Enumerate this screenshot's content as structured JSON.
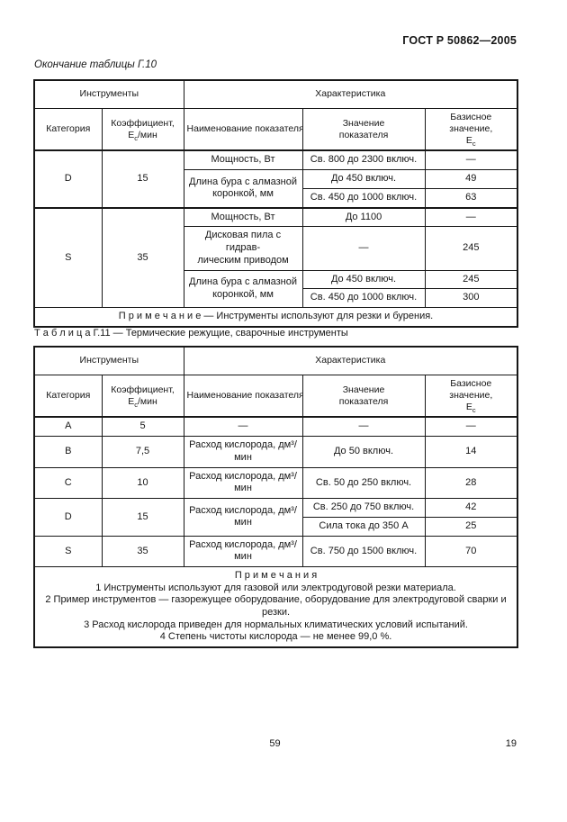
{
  "page": {
    "doc_number": "ГОСТ Р 50862—2005",
    "continuation_caption": "Окончание таблицы Г.10",
    "table2_caption": "Т а б л и ц а  Г.11 — Термические режущие, сварочные инструменты",
    "footer": {
      "page_center": "59",
      "page_right": "19"
    }
  },
  "header": {
    "instruments": "Инструменты",
    "characteristic": "Характеристика",
    "category": "Категория",
    "coef_line1": "Коэффициент,",
    "e_symbol": "Е",
    "e_sub": "с",
    "coef_unit": "/мин",
    "name": "Наименование показателя",
    "value_line1": "Значение",
    "value_line2": "показателя",
    "base_line1": "Базисное значение,"
  },
  "tables": [
    {
      "name": "Г.10",
      "rows": [
        {
          "cells": [
            {
              "t": "D",
              "r": 3
            },
            {
              "t": "15",
              "r": 3
            },
            {
              "t": "Мощность, Вт"
            },
            {
              "t": "Св. 800 до 2300 включ."
            },
            {
              "t": "—"
            }
          ]
        },
        {
          "cells": [
            {
              "t": "Длина бура с алмазной коронкой, мм",
              "r": 2
            },
            {
              "t": "До 450 включ."
            },
            {
              "t": "49"
            }
          ]
        },
        {
          "cells": [
            {
              "t": "Св. 450 до 1000 включ."
            },
            {
              "t": "63"
            }
          ]
        },
        {
          "cls": "group-sep",
          "cells": [
            {
              "t": "S",
              "r": 4
            },
            {
              "t": "35",
              "r": 4
            },
            {
              "t": "Мощность, Вт"
            },
            {
              "t": "До 1100"
            },
            {
              "t": "—"
            }
          ]
        },
        {
          "cells": [
            {
              "lines": [
                "Дисковая пила с гидрав-",
                "лическим приводом"
              ]
            },
            {
              "t": "—"
            },
            {
              "t": "245"
            }
          ]
        },
        {
          "cells": [
            {
              "t": "Длина бура с алмазной коронкой, мм",
              "r": 2
            },
            {
              "t": "До 450 включ."
            },
            {
              "t": "245"
            }
          ]
        },
        {
          "cells": [
            {
              "t": "Св. 450 до 1000 включ."
            },
            {
              "t": "300"
            }
          ]
        },
        {
          "cells": [
            {
              "t": "П р и м е ч а н и е — Инструменты используют для резки и бурения.",
              "c": 5,
              "cls": "note-left"
            }
          ]
        }
      ]
    },
    {
      "name": "Г.11",
      "rows": [
        {
          "cells": [
            {
              "t": "A"
            },
            {
              "t": "5"
            },
            {
              "t": "—"
            },
            {
              "t": "—"
            },
            {
              "t": "—"
            }
          ]
        },
        {
          "cells": [
            {
              "t": "B"
            },
            {
              "t": "7,5"
            },
            {
              "t": "Расход кислорода, дм³/мин"
            },
            {
              "t": "До 50 включ."
            },
            {
              "t": "14"
            }
          ]
        },
        {
          "cells": [
            {
              "t": "C"
            },
            {
              "t": "10"
            },
            {
              "t": "Расход кислорода, дм³/мин"
            },
            {
              "t": "Св. 50 до 250 включ."
            },
            {
              "t": "28"
            }
          ]
        },
        {
          "cells": [
            {
              "t": "D",
              "r": 2
            },
            {
              "t": "15",
              "r": 2
            },
            {
              "t": "Расход кислорода, дм³/мин",
              "r": 2
            },
            {
              "t": "Св. 250 до 750 включ."
            },
            {
              "t": "42"
            }
          ]
        },
        {
          "cells": [
            {
              "t": "Сила тока до 350 А"
            },
            {
              "t": "25"
            }
          ]
        },
        {
          "cells": [
            {
              "t": "S"
            },
            {
              "t": "35"
            },
            {
              "t": "Расход кислорода, дм³/мин"
            },
            {
              "t": "Св. 750 до 1500 включ."
            },
            {
              "t": "70"
            }
          ]
        },
        {
          "cells": [
            {
              "lines": [
                "П р и м е ч а н и я",
                "1 Инструменты используют для газовой или электродуговой резки материала.",
                "2 Пример инструментов — газорежущее оборудование, оборудование для электродуговой сварки и резки.",
                "3 Расход кислорода приведен для нормальных климатических условий испытаний.",
                "4 Степень чистоты кислорода — не менее 99,0 %."
              ],
              "c": 5,
              "cls": "note-left notes-block"
            }
          ]
        }
      ]
    }
  ]
}
